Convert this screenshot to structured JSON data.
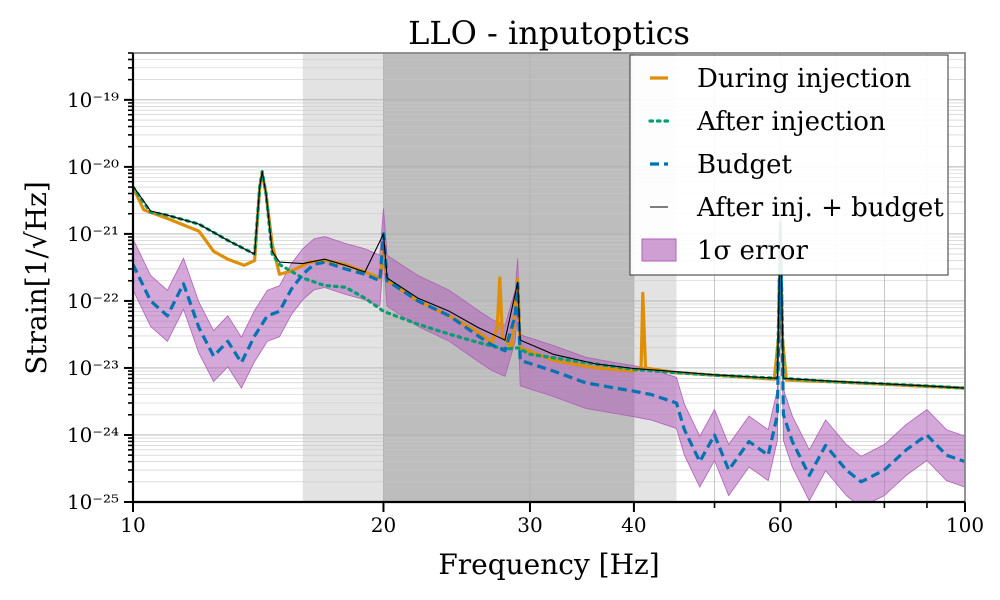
{
  "chart_data": {
    "type": "line",
    "title": "LLO - inputoptics",
    "xlabel": "Frequency [Hz]",
    "ylabel": "Strain[1/√Hz]",
    "xscale": "log",
    "yscale": "log",
    "xlim": [
      10,
      100
    ],
    "ylim": [
      1e-25,
      5e-19
    ],
    "x_ticks": [
      {
        "value": 10,
        "label": "10"
      },
      {
        "value": 20,
        "label": "20"
      },
      {
        "value": 30,
        "label": "30"
      },
      {
        "value": 40,
        "label": "40"
      },
      {
        "value": 60,
        "label": "60"
      },
      {
        "value": 100,
        "label": "100"
      }
    ],
    "y_ticks": [
      {
        "value": 1e-25,
        "label": "10⁻²⁵"
      },
      {
        "value": 1e-24,
        "label": "10⁻²⁴"
      },
      {
        "value": 1e-23,
        "label": "10⁻²³"
      },
      {
        "value": 1e-22,
        "label": "10⁻²²"
      },
      {
        "value": 1e-21,
        "label": "10⁻²¹"
      },
      {
        "value": 1e-20,
        "label": "10⁻²⁰"
      },
      {
        "value": 1e-19,
        "label": "10⁻¹⁹"
      }
    ],
    "shaded_regions": [
      {
        "x": [
          16,
          45
        ],
        "color": "#e3e3e3"
      },
      {
        "x": [
          20,
          40
        ],
        "color": "#bdbdbd"
      }
    ],
    "legend": {
      "placement": "top-right",
      "entries": [
        {
          "series": "during",
          "label": "During injection"
        },
        {
          "series": "after",
          "label": "After injection"
        },
        {
          "series": "budget",
          "label": "Budget"
        },
        {
          "series": "sum",
          "label": "After inj. + budget"
        },
        {
          "series": "error",
          "label": "1σ error"
        }
      ]
    },
    "colors": {
      "during": "#de8f05",
      "after": "#029e73",
      "budget": "#0173b2",
      "sum": "#000000",
      "error": "#b060b8"
    },
    "series": [
      {
        "name": "During injection",
        "key": "during",
        "points": [
          [
            10,
            5e-21
          ],
          [
            10.3,
            2.3e-21
          ],
          [
            11,
            1.7e-21
          ],
          [
            12,
            1.1e-21
          ],
          [
            12.5,
            5.5e-22
          ],
          [
            13,
            4.2e-22
          ],
          [
            13.6,
            3.4e-22
          ],
          [
            14,
            4e-22
          ],
          [
            14.2,
            5e-21
          ],
          [
            14.3,
            8e-21
          ],
          [
            14.45,
            4e-21
          ],
          [
            14.7,
            7e-22
          ],
          [
            15,
            2.5e-22
          ],
          [
            15.5,
            2.8e-22
          ],
          [
            16.3,
            3.8e-22
          ],
          [
            17,
            4e-22
          ],
          [
            18,
            3.5e-22
          ],
          [
            19,
            2.7e-22
          ],
          [
            19.8,
            2.2e-22
          ],
          [
            20,
            6e-22
          ],
          [
            20.2,
            2e-22
          ],
          [
            22,
            1e-22
          ],
          [
            24,
            6e-23
          ],
          [
            26,
            3.4e-23
          ],
          [
            27,
            2.4e-23
          ],
          [
            27.4,
            4e-23
          ],
          [
            27.6,
            2.2e-22
          ],
          [
            27.8,
            3e-23
          ],
          [
            28.5,
            2e-23
          ],
          [
            28.8,
            8e-23
          ],
          [
            29,
            2.1e-22
          ],
          [
            29.2,
            2e-23
          ],
          [
            32,
            1.3e-23
          ],
          [
            36,
            1e-23
          ],
          [
            40,
            9e-24
          ],
          [
            40.8,
            1e-23
          ],
          [
            41.0,
            1.3e-22
          ],
          [
            41.3,
            1e-23
          ],
          [
            45,
            8.5e-24
          ],
          [
            50,
            7.8e-24
          ],
          [
            55,
            7.2e-24
          ],
          [
            59,
            6.8e-24
          ],
          [
            59.7,
            3e-23
          ],
          [
            60,
            1.5e-21
          ],
          [
            60.3,
            3e-23
          ],
          [
            61,
            6.6e-24
          ],
          [
            70,
            6.2e-24
          ],
          [
            80,
            5.7e-24
          ],
          [
            90,
            5.3e-24
          ],
          [
            100,
            5e-24
          ]
        ]
      },
      {
        "name": "After injection",
        "key": "after",
        "points": [
          [
            10,
            5e-21
          ],
          [
            10.5,
            2.1e-21
          ],
          [
            11,
            1.9e-21
          ],
          [
            12,
            1.4e-21
          ],
          [
            13,
            8e-22
          ],
          [
            14,
            5e-22
          ],
          [
            14.2,
            5e-21
          ],
          [
            14.3,
            8.5e-21
          ],
          [
            14.45,
            4e-21
          ],
          [
            14.7,
            5e-22
          ],
          [
            15,
            3.5e-22
          ],
          [
            16,
            2.2e-22
          ],
          [
            17,
            1.7e-22
          ],
          [
            18,
            1.6e-22
          ],
          [
            19,
            1.1e-22
          ],
          [
            20,
            7e-23
          ],
          [
            22,
            4.5e-23
          ],
          [
            24,
            3.2e-23
          ],
          [
            26,
            2.4e-23
          ],
          [
            28,
            1.9e-23
          ],
          [
            29,
            2e-23
          ],
          [
            30,
            1.6e-23
          ],
          [
            35,
            1.2e-23
          ],
          [
            40,
            9.5e-24
          ],
          [
            45,
            8.5e-24
          ],
          [
            50,
            7.8e-24
          ],
          [
            59.5,
            7e-24
          ],
          [
            60,
            1.2e-21
          ],
          [
            60.5,
            7e-24
          ],
          [
            70,
            6.2e-24
          ],
          [
            80,
            5.8e-24
          ],
          [
            90,
            5.4e-24
          ],
          [
            100,
            5e-24
          ]
        ]
      },
      {
        "name": "Budget",
        "key": "budget",
        "points": [
          [
            10,
            3.5e-22
          ],
          [
            10.5,
            1e-22
          ],
          [
            11,
            6e-23
          ],
          [
            11.5,
            1.8e-22
          ],
          [
            12,
            4e-23
          ],
          [
            12.5,
            1.5e-23
          ],
          [
            13,
            2.5e-23
          ],
          [
            13.5,
            1.2e-23
          ],
          [
            14,
            3e-23
          ],
          [
            14.5,
            6e-23
          ],
          [
            15,
            7e-23
          ],
          [
            15.5,
            1.5e-22
          ],
          [
            16,
            2.5e-22
          ],
          [
            16.5,
            3.5e-22
          ],
          [
            17,
            3.8e-22
          ],
          [
            18,
            3e-22
          ],
          [
            19,
            2.5e-22
          ],
          [
            19.8,
            2e-22
          ],
          [
            20,
            1e-21
          ],
          [
            20.2,
            2e-22
          ],
          [
            22,
            1e-22
          ],
          [
            24,
            6e-23
          ],
          [
            26,
            3e-23
          ],
          [
            27,
            2.2e-23
          ],
          [
            28,
            1.8e-23
          ],
          [
            28.8,
            6e-23
          ],
          [
            29,
            1.8e-22
          ],
          [
            29.2,
            1.3e-23
          ],
          [
            32,
            9e-24
          ],
          [
            35,
            6e-24
          ],
          [
            38,
            5e-24
          ],
          [
            40,
            4.5e-24
          ],
          [
            42,
            4e-24
          ],
          [
            45,
            3e-24
          ],
          [
            46,
            1.2e-24
          ],
          [
            48,
            4e-25
          ],
          [
            50,
            1e-24
          ],
          [
            52,
            3e-25
          ],
          [
            55,
            8e-25
          ],
          [
            58,
            5e-25
          ],
          [
            59.5,
            2e-24
          ],
          [
            60,
            1.5e-21
          ],
          [
            60.5,
            2e-24
          ],
          [
            62,
            8e-25
          ],
          [
            65,
            2.5e-25
          ],
          [
            68,
            7e-25
          ],
          [
            72,
            3e-25
          ],
          [
            75,
            2e-25
          ],
          [
            80,
            3e-25
          ],
          [
            85,
            6e-25
          ],
          [
            90,
            1e-24
          ],
          [
            95,
            5e-25
          ],
          [
            100,
            4e-25
          ]
        ]
      },
      {
        "name": "After inj. + budget",
        "key": "sum",
        "points": [
          [
            10,
            5.2e-21
          ],
          [
            10.5,
            2.2e-21
          ],
          [
            11,
            1.9e-21
          ],
          [
            12,
            1.4e-21
          ],
          [
            13,
            8e-22
          ],
          [
            14,
            5e-22
          ],
          [
            14.2,
            5e-21
          ],
          [
            14.3,
            8.5e-21
          ],
          [
            14.45,
            4e-21
          ],
          [
            14.7,
            5.5e-22
          ],
          [
            15,
            3.8e-22
          ],
          [
            16,
            3.6e-22
          ],
          [
            17,
            4.2e-22
          ],
          [
            18,
            3.4e-22
          ],
          [
            19,
            2.7e-22
          ],
          [
            20,
            1e-21
          ],
          [
            20.2,
            2.2e-22
          ],
          [
            22,
            1.1e-22
          ],
          [
            24,
            7e-23
          ],
          [
            26,
            4e-23
          ],
          [
            28,
            2.6e-23
          ],
          [
            29,
            1.9e-22
          ],
          [
            29.2,
            2.6e-23
          ],
          [
            32,
            1.6e-23
          ],
          [
            36,
            1.15e-23
          ],
          [
            40,
            9.8e-24
          ],
          [
            45,
            8.8e-24
          ],
          [
            50,
            7.9e-24
          ],
          [
            59.5,
            7e-24
          ],
          [
            60,
            1.5e-21
          ],
          [
            60.5,
            7e-24
          ],
          [
            70,
            6.3e-24
          ],
          [
            80,
            5.8e-24
          ],
          [
            90,
            5.4e-24
          ],
          [
            100,
            5e-24
          ]
        ]
      }
    ],
    "error_band": {
      "name": "1σ error",
      "key": "error",
      "factor": 2.4
    }
  }
}
